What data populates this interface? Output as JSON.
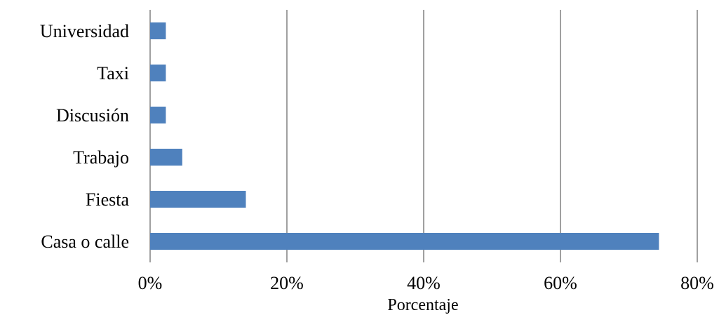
{
  "chart_data": {
    "type": "bar",
    "orientation": "horizontal",
    "categories": [
      "Universidad",
      "Taxi",
      "Discusión",
      "Trabajo",
      "Fiesta",
      "Casa o calle"
    ],
    "values": [
      2.3,
      2.3,
      2.3,
      4.7,
      14.0,
      74.4
    ],
    "xlabel": "Porcentaje",
    "ylabel": "",
    "xlim": [
      0,
      80
    ],
    "xticks": [
      "0%",
      "20%",
      "40%",
      "60%",
      "80%"
    ],
    "grid": "vertical",
    "legend": "none",
    "bar_color": "#4F81BD"
  }
}
